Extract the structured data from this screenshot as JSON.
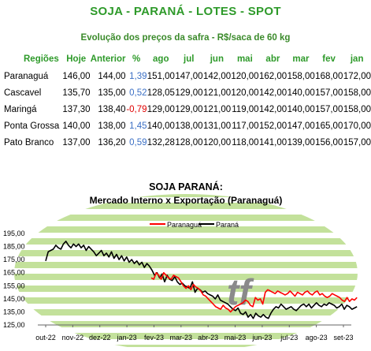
{
  "header": {
    "title": "SOJA - PARANÁ - LOTES - SPOT",
    "subtitle": "Evolução dos preços da safra - R$/saca de 60 kg"
  },
  "table": {
    "columns": [
      "Regiões",
      "Hoje",
      "Anterior",
      "%",
      "ago",
      "jul",
      "jun",
      "mai",
      "abr",
      "mar",
      "fev",
      "jan"
    ],
    "rows": [
      {
        "region": "Paranaguá",
        "hoje": "146,00",
        "anterior": "144,00",
        "pct": "1,39",
        "pct_dir": "pos",
        "months": [
          "151,00",
          "147,00",
          "142,00",
          "120,00",
          "162,00",
          "158,00",
          "168,00",
          "172,00"
        ]
      },
      {
        "region": "Cascavel",
        "hoje": "135,70",
        "anterior": "135,00",
        "pct": "0,52",
        "pct_dir": "pos",
        "months": [
          "128,05",
          "129,00",
          "121,00",
          "120,00",
          "142,00",
          "140,00",
          "157,00",
          "158,00"
        ]
      },
      {
        "region": "Maringá",
        "hoje": "137,30",
        "anterior": "138,40",
        "pct": "-0,79",
        "pct_dir": "neg",
        "months": [
          "129,00",
          "129,00",
          "121,00",
          "119,00",
          "142,00",
          "140,00",
          "157,00",
          "158,00"
        ]
      },
      {
        "region": "Ponta Grossa",
        "hoje": "140,00",
        "anterior": "138,00",
        "pct": "1,45",
        "pct_dir": "pos",
        "months": [
          "140,00",
          "138,00",
          "131,00",
          "117,00",
          "152,00",
          "147,00",
          "165,00",
          "170,00"
        ]
      },
      {
        "region": "Pato Branco",
        "hoje": "137,00",
        "anterior": "136,20",
        "pct": "0,59",
        "pct_dir": "pos",
        "months": [
          "132,28",
          "128,00",
          "120,00",
          "118,00",
          "141,00",
          "139,00",
          "156,00",
          "157,00"
        ]
      }
    ]
  },
  "colors": {
    "paranagua": "#ff0000",
    "parana": "#000000",
    "bg_green": "#b8dc8a",
    "title_green": "#2e9a2a",
    "pct_positive": "#3b6fc4",
    "pct_negative": "#e00000"
  },
  "chart_data": {
    "type": "line",
    "title": "SOJA PARANÁ:",
    "subtitle": "Mercado Interno x Exportação (Paranaguá)",
    "xlabel": "",
    "ylabel": "",
    "ylim": [
      125,
      195
    ],
    "yticks": [
      "195,00",
      "185,00",
      "175,00",
      "165,00",
      "155,00",
      "145,00",
      "135,00",
      "125,00"
    ],
    "xticks": [
      "out-22",
      "nov-22",
      "dez-22",
      "jan-23",
      "fev-23",
      "mar-23",
      "abr-23",
      "mai-23",
      "jun-23",
      "jul-23",
      "ago-23",
      "set-23"
    ],
    "legend_position": "top-center",
    "watermark": "tf",
    "series": [
      {
        "name": "Paranaguá",
        "color": "#ff0000",
        "start_index": 3.9,
        "end_index": 11.5,
        "values": [
          161,
          160,
          165,
          163,
          160,
          165,
          163,
          161,
          160,
          163,
          162,
          161,
          158,
          155,
          153,
          155,
          152,
          156,
          154,
          153,
          151,
          148,
          147,
          145,
          143,
          141,
          139,
          138,
          137,
          140,
          138,
          137,
          135,
          137,
          139,
          140,
          141,
          142,
          144,
          143,
          140,
          139,
          146,
          144,
          145,
          141,
          150,
          152,
          151,
          150,
          149,
          151,
          150,
          149,
          148,
          149,
          151,
          149,
          147,
          150,
          149,
          148,
          150,
          151,
          149,
          148,
          150,
          151,
          148,
          149,
          147,
          146,
          147,
          149,
          148,
          147,
          146,
          144,
          143,
          146,
          143,
          145,
          144,
          146
        ]
      },
      {
        "name": "Paraná",
        "color": "#000000",
        "start_index": 0,
        "end_index": 11.5,
        "values": [
          174,
          181,
          182,
          183,
          186,
          184,
          183,
          187,
          189,
          186,
          184,
          187,
          185,
          187,
          184,
          186,
          182,
          185,
          183,
          181,
          178,
          180,
          182,
          178,
          180,
          177,
          181,
          176,
          179,
          175,
          178,
          174,
          177,
          173,
          175,
          172,
          174,
          171,
          173,
          169,
          172,
          170,
          167,
          163,
          165,
          161,
          164,
          158,
          163,
          160,
          159,
          162,
          158,
          156,
          157,
          155,
          154,
          153,
          158,
          150,
          153,
          152,
          150,
          151,
          149,
          148,
          147,
          145,
          148,
          144,
          143,
          142,
          141,
          139,
          137,
          136,
          138,
          134,
          133,
          135,
          131,
          133,
          130,
          134,
          132,
          131,
          133,
          131,
          130,
          134,
          137,
          139,
          138,
          141,
          139,
          137,
          138,
          139,
          137,
          136,
          138,
          140,
          141,
          139,
          141,
          138,
          140,
          142,
          140,
          139,
          141,
          140,
          142,
          141,
          140,
          138,
          139,
          141,
          137,
          140,
          139,
          137,
          138,
          139
        ]
      }
    ]
  }
}
